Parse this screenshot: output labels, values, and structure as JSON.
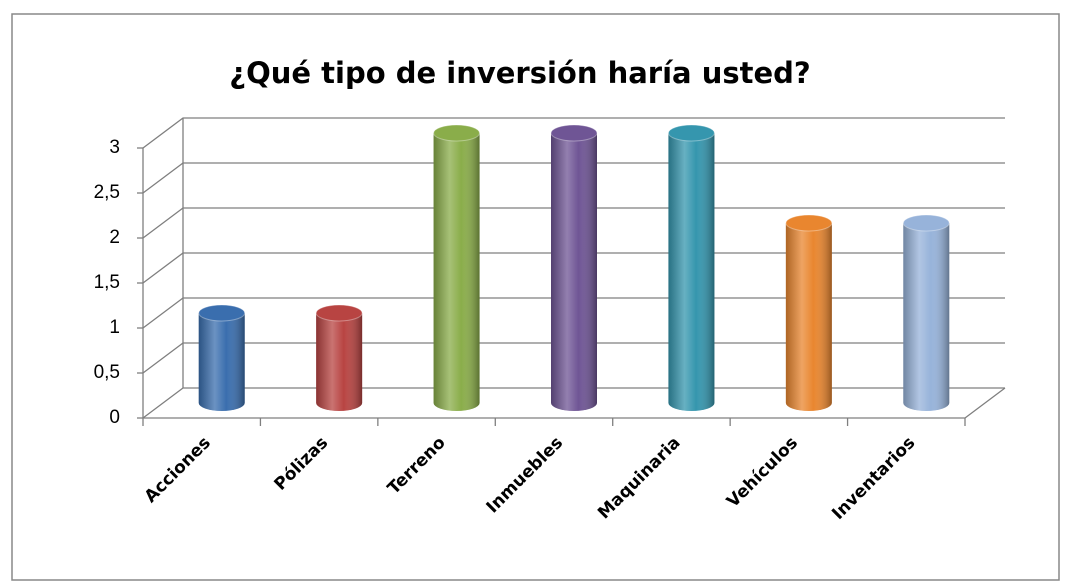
{
  "chart_data": {
    "type": "bar3d",
    "title": "¿Qué tipo de inversión haría usted?",
    "categories": [
      "Acciones",
      "Pólizas",
      "Terreno",
      "Inmuebles",
      "Maquinaria",
      "Vehículos",
      "Inventarios"
    ],
    "values": [
      1,
      1,
      3,
      3,
      3,
      2,
      2
    ],
    "colors": [
      "#3a6eae",
      "#b84442",
      "#8aad4a",
      "#6f5595",
      "#3596ae",
      "#e9862f",
      "#97b3da"
    ],
    "ylim": [
      0,
      3
    ],
    "yticks": [
      0,
      {
        "value": 0.5,
        "label": "0,5"
      },
      1,
      {
        "value": 1.5,
        "label": "1,5"
      },
      2,
      {
        "value": 2.5,
        "label": "2,5"
      },
      3
    ],
    "grid": true
  }
}
